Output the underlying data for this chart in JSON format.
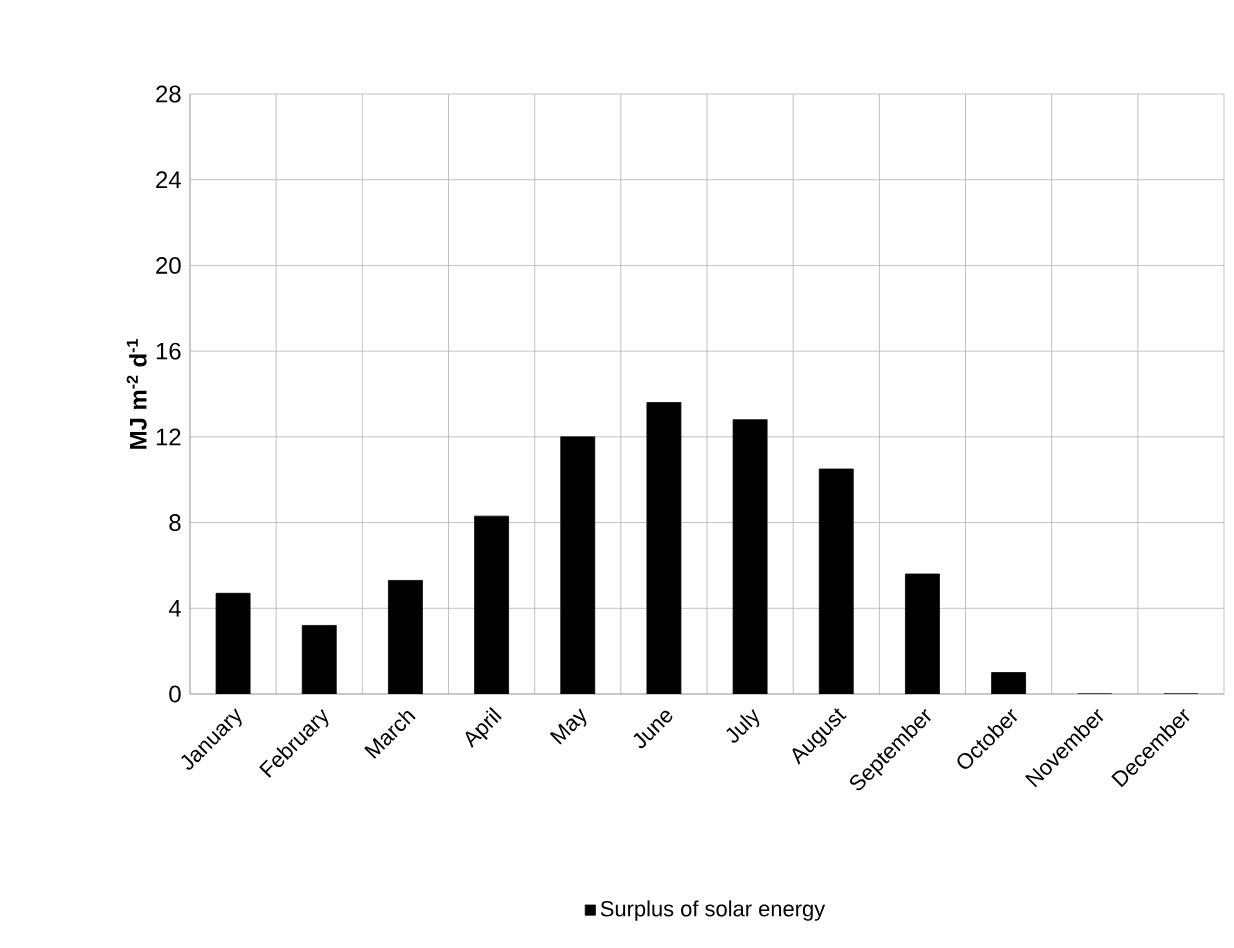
{
  "chart_data": {
    "type": "bar",
    "ylabel": "MJ m$^{-2}$ d$^{-1}$",
    "categories": [
      "January",
      "February",
      "March",
      "April",
      "May",
      "June",
      "July",
      "August",
      "September",
      "October",
      "November",
      "December"
    ],
    "series": [
      {
        "name": "Surplus of solar energy",
        "color": "#000000",
        "values": [
          4.7,
          3.2,
          5.3,
          8.3,
          12.0,
          13.6,
          12.8,
          10.5,
          5.6,
          1.0,
          0,
          0
        ]
      }
    ],
    "ylim": [
      0,
      28
    ],
    "yticks": [
      0,
      4,
      8,
      12,
      16,
      20,
      24,
      28
    ],
    "grid": true,
    "legend": "bottom"
  }
}
